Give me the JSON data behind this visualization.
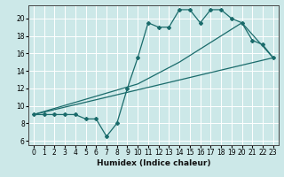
{
  "xlabel": "Humidex (Indice chaleur)",
  "ylabel": "",
  "xlim": [
    -0.5,
    23.5
  ],
  "ylim": [
    5.5,
    21.5
  ],
  "xticks": [
    0,
    1,
    2,
    3,
    4,
    5,
    6,
    7,
    8,
    9,
    10,
    11,
    12,
    13,
    14,
    15,
    16,
    17,
    18,
    19,
    20,
    21,
    22,
    23
  ],
  "yticks": [
    6,
    8,
    10,
    12,
    14,
    16,
    18,
    20
  ],
  "bg_color": "#cce8e8",
  "line_color": "#1a6b6b",
  "grid_color": "#b8d8d8",
  "line1_x": [
    0,
    1,
    2,
    3,
    4,
    5,
    6,
    7,
    8,
    9,
    10,
    11,
    12,
    13,
    14,
    15,
    16,
    17,
    18,
    19,
    20,
    21,
    22,
    23
  ],
  "line1_y": [
    9,
    9,
    9,
    9,
    9,
    8.5,
    8.5,
    6.5,
    8,
    12,
    15.5,
    19.5,
    19,
    19,
    21,
    21,
    19.5,
    21,
    21,
    20,
    19.5,
    17.5,
    17,
    15.5
  ],
  "line2_x": [
    0,
    23
  ],
  "line2_y": [
    9.0,
    15.5
  ],
  "line3_x": [
    0,
    10,
    14,
    20,
    23
  ],
  "line3_y": [
    9.0,
    12.5,
    15.0,
    19.5,
    15.5
  ],
  "figsize": [
    3.2,
    2.0
  ],
  "dpi": 100
}
